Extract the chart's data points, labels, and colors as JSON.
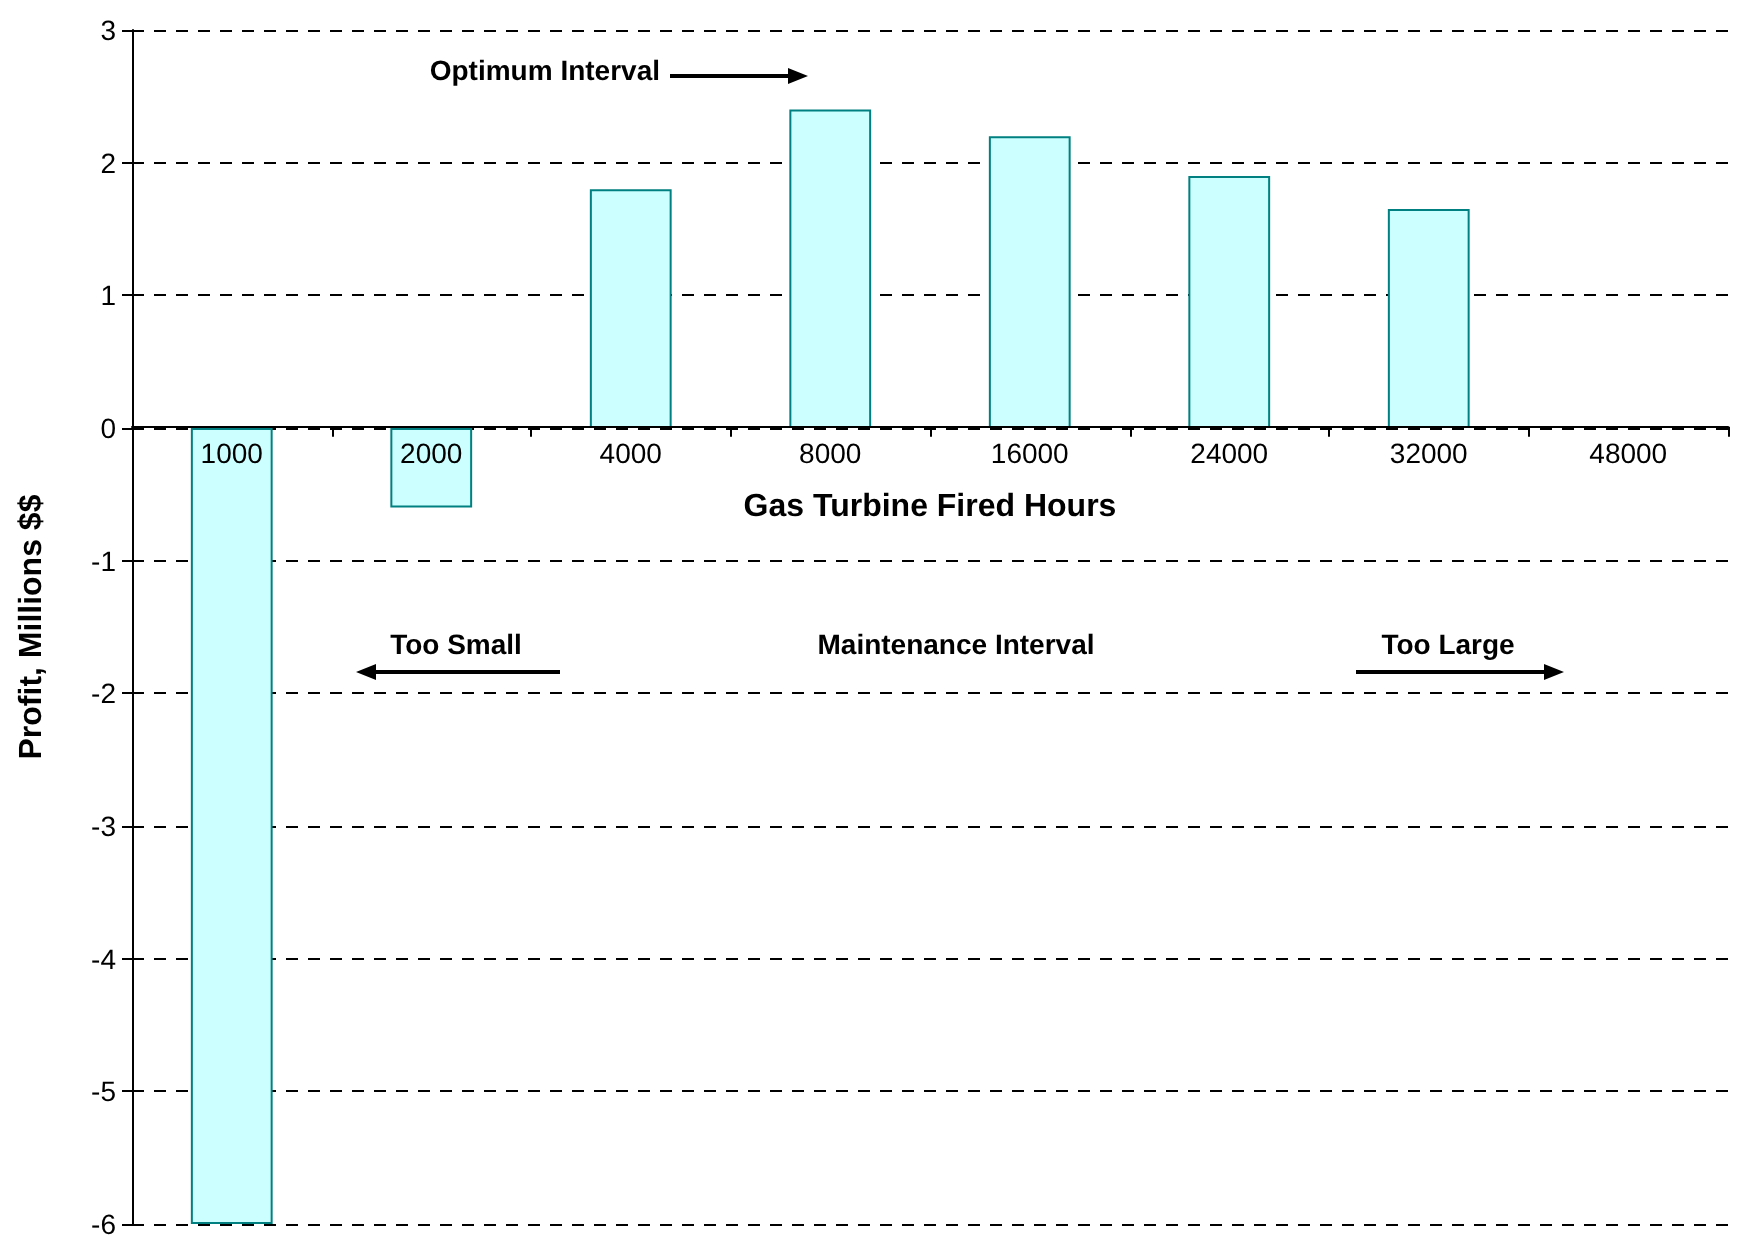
{
  "chart_data": {
    "type": "bar",
    "xlabel": "Gas Turbine Fired Hours",
    "ylabel": "Profit, Millions $$",
    "categories": [
      "1000",
      "2000",
      "4000",
      "8000",
      "16000",
      "24000",
      "32000",
      "48000"
    ],
    "values": [
      -6,
      -0.6,
      1.8,
      2.4,
      2.2,
      1.9,
      1.65,
      null
    ],
    "color": "#ccffff",
    "ylim": [
      -6,
      3
    ],
    "yticks": [
      -6,
      -5,
      -4,
      -3,
      -2,
      -1,
      0,
      1,
      2,
      3
    ],
    "grid": "y",
    "annotations": [
      "Optimum Interval",
      "Too Small",
      "Maintenance Interval",
      "Too Large"
    ]
  }
}
